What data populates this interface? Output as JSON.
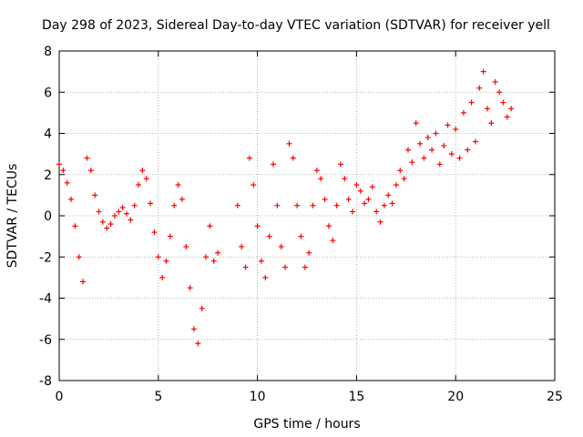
{
  "chart_data": {
    "type": "scatter",
    "title": "Day 298 of 2023, Sidereal Day-to-day VTEC variation (SDTVAR) for receiver yell",
    "xlabel": "GPS time / hours",
    "ylabel": "SDTVAR / TECUs",
    "xlim": [
      0,
      25
    ],
    "ylim": [
      -8,
      8
    ],
    "xticks": [
      0,
      5,
      10,
      15,
      20,
      25
    ],
    "yticks": [
      -8,
      -6,
      -4,
      -2,
      0,
      2,
      4,
      6,
      8
    ],
    "grid": true,
    "marker": "+",
    "series": [
      {
        "name": "SDTVAR",
        "color": "#ff0000",
        "x": [
          0.0,
          0.2,
          0.4,
          0.6,
          0.8,
          1.0,
          1.2,
          1.4,
          1.6,
          1.8,
          2.0,
          2.2,
          2.4,
          2.6,
          2.8,
          3.0,
          3.2,
          3.4,
          3.6,
          3.8,
          4.0,
          4.2,
          4.4,
          4.6,
          4.8,
          5.0,
          5.2,
          5.4,
          5.6,
          5.8,
          6.0,
          6.2,
          6.4,
          6.6,
          6.8,
          7.0,
          7.2,
          7.4,
          7.6,
          7.8,
          8.0,
          9.0,
          9.2,
          9.4,
          9.6,
          9.8,
          10.0,
          10.2,
          10.4,
          10.6,
          10.8,
          11.0,
          11.2,
          11.4,
          11.6,
          11.8,
          12.0,
          12.2,
          12.4,
          12.6,
          12.8,
          13.0,
          13.2,
          13.4,
          13.6,
          13.8,
          14.0,
          14.2,
          14.4,
          14.6,
          14.8,
          15.0,
          15.2,
          15.4,
          15.6,
          15.8,
          16.0,
          16.2,
          16.4,
          16.6,
          16.8,
          17.0,
          17.2,
          17.4,
          17.6,
          17.8,
          18.0,
          18.2,
          18.4,
          18.6,
          18.8,
          19.0,
          19.2,
          19.4,
          19.6,
          19.8,
          20.0,
          20.2,
          20.4,
          20.6,
          20.8,
          21.0,
          21.2,
          21.4,
          21.6,
          21.8,
          22.0,
          22.2,
          22.4,
          22.6,
          22.8
        ],
        "y": [
          2.5,
          2.2,
          1.6,
          0.8,
          -0.5,
          -2.0,
          -3.2,
          2.8,
          2.2,
          1.0,
          0.2,
          -0.3,
          -0.6,
          -0.4,
          0.0,
          0.2,
          0.4,
          0.1,
          -0.2,
          0.5,
          1.5,
          2.2,
          1.8,
          0.6,
          -0.8,
          -2.0,
          -3.0,
          -2.2,
          -1.0,
          0.5,
          1.5,
          0.8,
          -1.5,
          -3.5,
          -5.5,
          -6.2,
          -4.5,
          -2.0,
          -0.5,
          -2.2,
          -1.8,
          0.5,
          -1.5,
          -2.5,
          2.8,
          1.5,
          -0.5,
          -2.2,
          -3.0,
          -1.0,
          2.5,
          0.5,
          -1.5,
          -2.5,
          3.5,
          2.8,
          0.5,
          -1.0,
          -2.5,
          -1.8,
          0.5,
          2.2,
          1.8,
          0.8,
          -0.5,
          -1.2,
          0.5,
          2.5,
          1.8,
          0.8,
          0.2,
          1.5,
          1.2,
          0.6,
          0.8,
          1.4,
          0.2,
          -0.3,
          0.5,
          1.0,
          0.6,
          1.5,
          2.2,
          1.8,
          3.2,
          2.6,
          4.5,
          3.5,
          2.8,
          3.8,
          3.2,
          4.0,
          2.5,
          3.4,
          4.4,
          3.0,
          4.2,
          2.8,
          5.0,
          3.2,
          5.5,
          3.6,
          6.2,
          7.0,
          5.2,
          4.5,
          6.5,
          6.0,
          5.5,
          4.8,
          5.2
        ]
      }
    ]
  }
}
